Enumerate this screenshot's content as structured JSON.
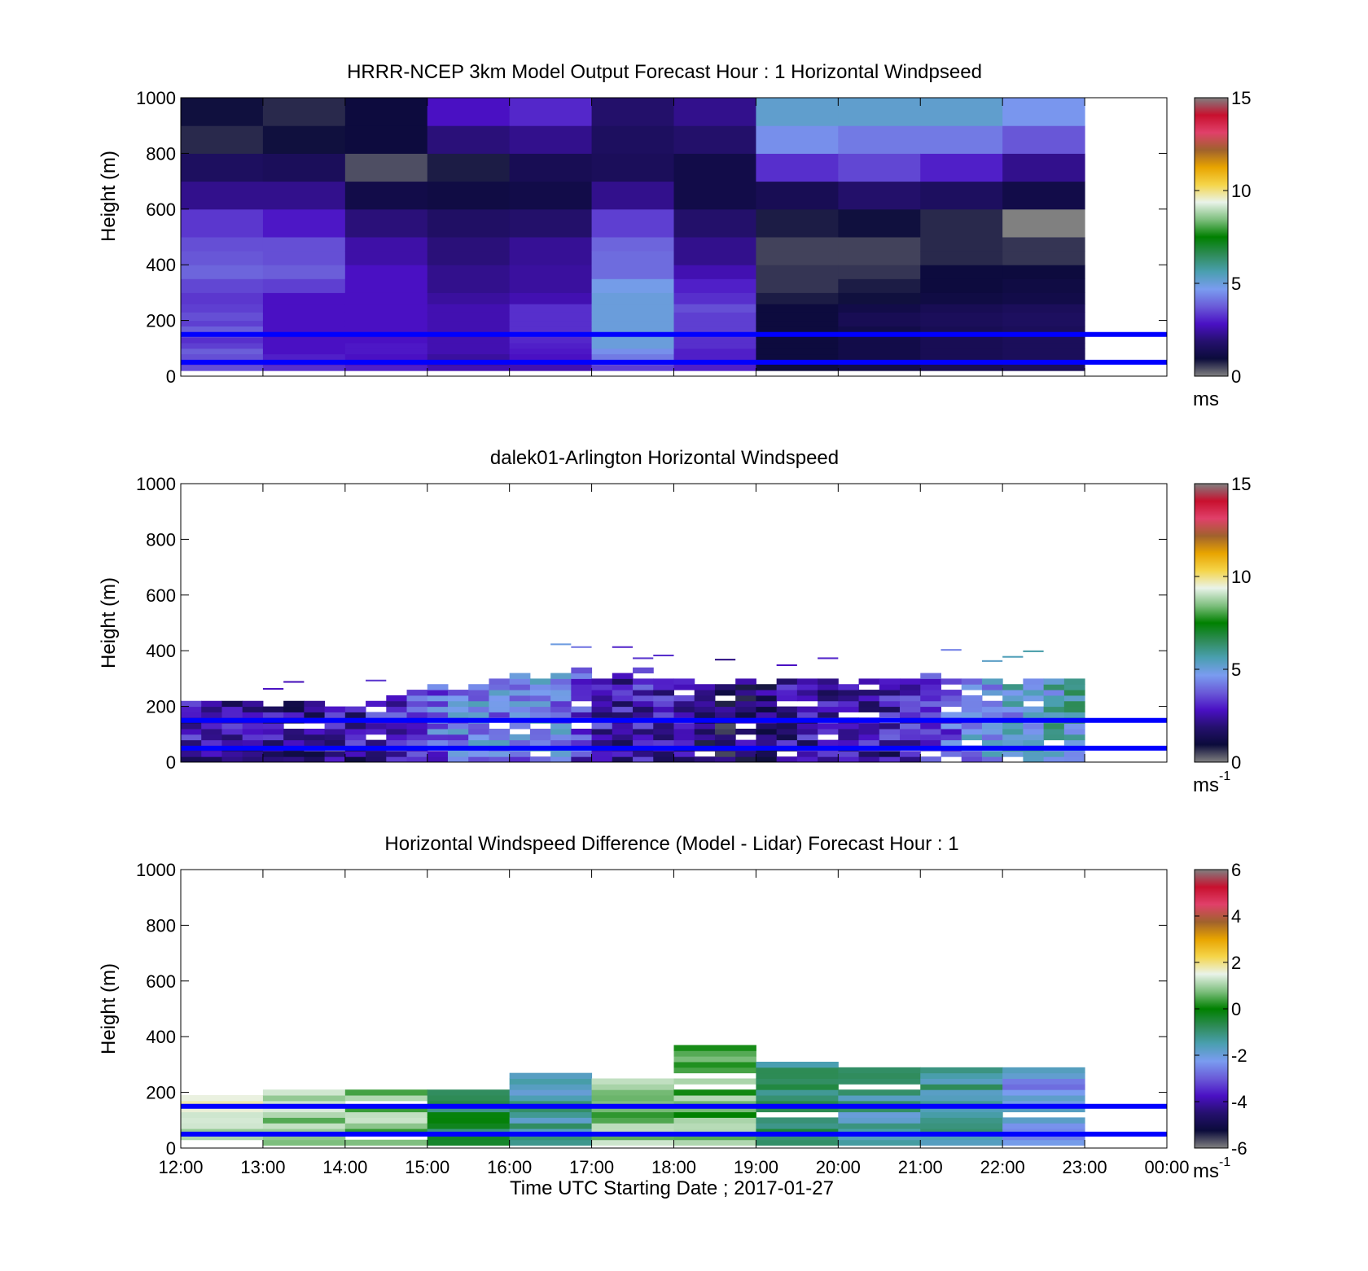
{
  "figure": {
    "xlabel": "Time UTC  Starting Date ; 2017-01-27",
    "xtick_labels": [
      "12:00",
      "13:00",
      "14:00",
      "15:00",
      "16:00",
      "17:00",
      "18:00",
      "19:00",
      "20:00",
      "21:00",
      "22:00",
      "23:00",
      "00:00"
    ],
    "colors": {
      "reference_line": "#0000ff",
      "colormap": [
        "#808080",
        "#0b0b3b",
        "#25106e",
        "#4a10c4",
        "#6a5bd8",
        "#7a9cf0",
        "#4a9fb0",
        "#2e8b57",
        "#008000",
        "#7fbf7f",
        "#e9f3e9",
        "#f5d54a",
        "#e8a400",
        "#a0622d",
        "#e0406a",
        "#c8102e",
        "#808080"
      ]
    }
  },
  "chart_data": [
    {
      "type": "heatmap",
      "title": "HRRR-NCEP 3km Model Output   Forecast Hour : 1 Horizontal Windpseed",
      "ylabel": "Height (m)",
      "xlim": [
        12,
        24
      ],
      "ylim": [
        0,
        1000
      ],
      "yticks": [
        0,
        200,
        400,
        600,
        800,
        1000
      ],
      "colorbar": {
        "min": 0,
        "max": 15,
        "ticks": [
          0,
          5,
          10,
          15
        ],
        "unit": "ms",
        "unit_sup": ""
      },
      "reference_lines_m": [
        50,
        150
      ],
      "hours": [
        12,
        13,
        14,
        15,
        16,
        17,
        18,
        19,
        20,
        21,
        22
      ],
      "levels_m": [
        20,
        40,
        60,
        80,
        100,
        120,
        140,
        160,
        180,
        200,
        230,
        260,
        300,
        350,
        400,
        450,
        500,
        600,
        700,
        800,
        900,
        1000
      ],
      "cells": [
        [
          3.3,
          2.8,
          3.3,
          3.0,
          3.1,
          4.0,
          2.8
        ],
        [
          3.3,
          2.7,
          2.7,
          2.7,
          3.0,
          2.9,
          2.7
        ],
        [
          3.2,
          3.2,
          2.8,
          2.8,
          3.3,
          2.9,
          2.4
        ],
        [
          3.3,
          2.4,
          2.3,
          2.7,
          3.4,
          3.8,
          3.6
        ],
        [
          3.6,
          3.8,
          4.0,
          3.8,
          3.1,
          3.8,
          3.6
        ],
        [
          3.3,
          3.5,
          3.6,
          3.7,
          4.2,
          4.0,
          3.8
        ],
        [
          3.2,
          3.1,
          3.3,
          3.2,
          3.3,
          4.8,
          3.3
        ],
        [
          2.9,
          2.8,
          2.2,
          3.7,
          3.9,
          3.1,
          1.3
        ],
        [
          1.9,
          2.0,
          1.9,
          2.4,
          3.5,
          1.8,
          1.3
        ],
        [
          1.8,
          1.6,
          1.9,
          2.0,
          1.8,
          1.0,
          0.9
        ]
      ],
      "grid": [
        [
          3.6,
          3.2,
          3.0,
          2.6,
          2.6,
          3.4,
          3.0,
          1.0,
          1.2,
          1.4,
          1.5
        ],
        [
          3.4,
          3.0,
          2.8,
          2.4,
          2.6,
          3.6,
          3.0,
          1.0,
          1.2,
          1.4,
          1.5
        ],
        [
          3.6,
          3.0,
          2.8,
          2.4,
          2.8,
          4.2,
          3.0,
          1.0,
          1.2,
          1.4,
          1.5
        ],
        [
          3.8,
          2.8,
          2.9,
          2.6,
          2.9,
          4.5,
          3.0,
          1.0,
          1.2,
          1.4,
          1.5
        ],
        [
          3.4,
          2.8,
          2.9,
          2.6,
          3.0,
          5.0,
          3.2,
          1.0,
          1.2,
          1.4,
          1.5
        ],
        [
          3.2,
          2.8,
          2.8,
          2.6,
          3.1,
          5.0,
          3.2,
          1.0,
          1.2,
          1.4,
          1.5
        ],
        [
          3.6,
          2.8,
          2.8,
          2.6,
          3.2,
          5.0,
          3.3,
          1.0,
          1.2,
          1.4,
          1.5
        ],
        [
          3.8,
          2.8,
          2.8,
          2.6,
          3.2,
          5.0,
          3.4,
          1.0,
          1.2,
          1.4,
          1.5
        ],
        [
          3.4,
          2.8,
          2.8,
          2.6,
          3.2,
          5.0,
          3.4,
          1.0,
          1.4,
          1.5,
          1.6
        ],
        [
          3.6,
          2.8,
          2.8,
          2.6,
          3.2,
          5.0,
          3.4,
          1.0,
          1.4,
          1.5,
          1.6
        ],
        [
          3.4,
          2.8,
          2.8,
          2.6,
          3.2,
          5.0,
          3.6,
          1.0,
          1.2,
          1.4,
          1.5
        ],
        [
          3.3,
          2.8,
          2.8,
          2.4,
          2.6,
          5.0,
          3.2,
          0.8,
          0.9,
          1.1,
          1.2
        ],
        [
          3.5,
          3.4,
          2.8,
          2.2,
          2.4,
          4.8,
          3.0,
          0.6,
          0.8,
          1.0,
          1.1
        ],
        [
          3.9,
          3.8,
          2.8,
          2.2,
          2.4,
          4.0,
          2.6,
          0.6,
          0.6,
          1.0,
          1.0
        ],
        [
          3.7,
          3.6,
          2.5,
          2.0,
          2.3,
          4.0,
          2.2,
          0.5,
          0.5,
          0.7,
          0.6
        ],
        [
          3.6,
          3.6,
          2.5,
          2.0,
          2.3,
          3.9,
          2.2,
          0.5,
          0.5,
          0.7,
          0.6
        ],
        [
          3.3,
          2.9,
          2.0,
          1.7,
          1.8,
          3.4,
          1.8,
          0.8,
          0.9,
          0.7,
          15.0
        ],
        [
          2.2,
          2.2,
          1.2,
          1.1,
          1.2,
          2.2,
          1.2,
          1.4,
          1.8,
          1.6,
          1.2
        ],
        [
          1.6,
          1.5,
          0.4,
          0.8,
          1.4,
          1.5,
          1.2,
          3.2,
          3.5,
          3.0,
          2.2
        ],
        [
          0.7,
          0.9,
          1.0,
          2.0,
          2.2,
          1.6,
          1.8,
          4.5,
          4.2,
          4.2,
          3.7
        ],
        [
          0.9,
          0.7,
          1.0,
          2.8,
          3.1,
          1.8,
          2.2,
          5.2,
          5.2,
          5.2,
          4.6
        ]
      ]
    },
    {
      "type": "heatmap",
      "title": "dalek01-Arlington  Horizontal Windspeed",
      "ylabel": "Height (m)",
      "xlim": [
        12,
        24
      ],
      "ylim": [
        0,
        1000
      ],
      "yticks": [
        0,
        200,
        400,
        600,
        800,
        1000
      ],
      "colorbar": {
        "min": 0,
        "max": 15,
        "ticks": [
          0,
          5,
          10,
          15
        ],
        "unit": "ms",
        "unit_sup": "-1"
      },
      "reference_lines_m": [
        50,
        150
      ],
      "time_step_h": 0.25,
      "level_step_m": 20,
      "profile_tops_m": [
        210,
        205,
        215,
        220,
        200,
        205,
        210,
        190,
        200,
        210,
        230,
        250,
        280,
        260,
        280,
        300,
        310,
        290,
        320,
        330,
        300,
        310,
        330,
        300,
        290,
        280,
        285,
        300,
        300,
        285,
        300,
        290,
        280,
        300,
        300,
        300,
        310,
        300,
        300,
        300,
        295,
        295,
        300,
        300
      ],
      "profile_means_ms": [
        2.6,
        2.5,
        2.4,
        2.4,
        2.3,
        2.2,
        2.3,
        2.4,
        2.6,
        2.8,
        3.2,
        3.6,
        4.0,
        4.2,
        4.5,
        4.3,
        4.6,
        4.8,
        4.4,
        3.6,
        2.8,
        2.6,
        2.8,
        2.7,
        2.4,
        1.8,
        1.6,
        1.8,
        2.0,
        2.3,
        2.5,
        2.6,
        2.7,
        2.6,
        2.7,
        3.2,
        3.6,
        3.8,
        4.4,
        4.8,
        5.0,
        5.2,
        5.4,
        5.6
      ]
    },
    {
      "type": "heatmap",
      "title": "Horizontal Windspeed Difference (Model - Lidar) Forecast Hour : 1",
      "ylabel": "Height (m)",
      "xlim": [
        12,
        24
      ],
      "ylim": [
        0,
        1000
      ],
      "yticks": [
        0,
        200,
        400,
        600,
        800,
        1000
      ],
      "colorbar": {
        "min": -6,
        "max": 6,
        "ticks": [
          -6,
          -4,
          -2,
          0,
          2,
          4,
          6
        ],
        "unit": "ms",
        "unit_sup": "-1"
      },
      "reference_lines_m": [
        50,
        150
      ],
      "hours": [
        12,
        13,
        14,
        15,
        16,
        17,
        18,
        19,
        20,
        21,
        22
      ],
      "profile_tops_m": [
        200,
        200,
        210,
        210,
        260,
        240,
        360,
        310,
        280,
        280,
        310
      ],
      "profile_means_ms": [
        1.2,
        1.0,
        0.8,
        -0.6,
        -1.4,
        0.8,
        0.6,
        -1.0,
        -1.4,
        -1.2,
        -2.2
      ]
    }
  ]
}
